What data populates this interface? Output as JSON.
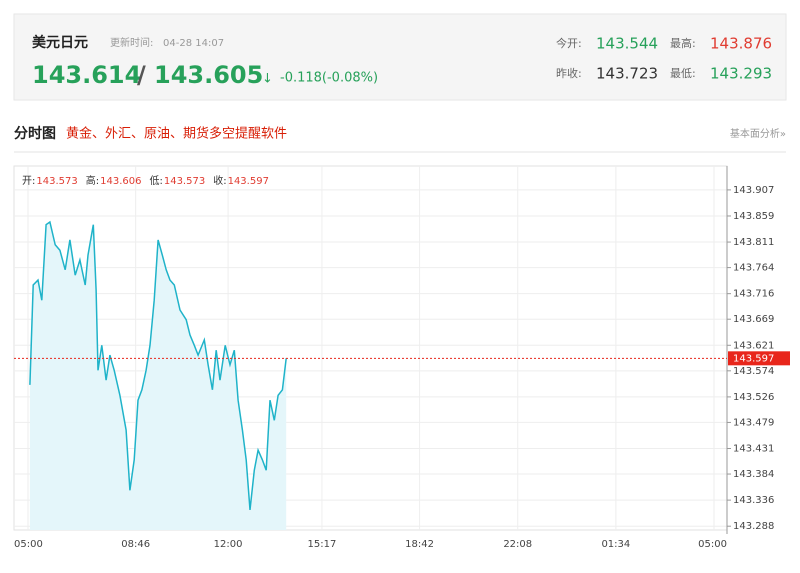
{
  "header": {
    "title": "美元日元",
    "update_label": "更新时间:",
    "update_time": "04-28 14:07",
    "bid": 143.614,
    "separator": "/",
    "ask": 143.605,
    "arrow": "↓",
    "change": "-0.118(-0.08%)",
    "stats": [
      {
        "label": "今开:",
        "value": 143.544,
        "color": "#27a15a"
      },
      {
        "label": "最高:",
        "value": 143.876,
        "color": "#e03c31"
      },
      {
        "label": "昨收:",
        "value": 143.723,
        "color": "#333333"
      },
      {
        "label": "最低:",
        "value": 143.293,
        "color": "#27a15a"
      }
    ]
  },
  "section": {
    "title": "分时图",
    "promo": "黄金、外汇、原油、期货多空提醒软件",
    "link": "基本面分析»"
  },
  "chart_data": {
    "type": "line",
    "info": [
      {
        "label": "开:",
        "value": 143.573
      },
      {
        "label": "高:",
        "value": 143.606
      },
      {
        "label": "低:",
        "value": 143.573
      },
      {
        "label": "收:",
        "value": 143.597
      }
    ],
    "x": [
      4,
      11,
      21,
      29,
      38,
      46,
      57,
      67,
      78,
      88,
      99,
      109,
      120,
      126,
      137,
      143,
      147,
      155,
      164,
      172,
      181,
      193,
      206,
      214,
      223,
      231,
      239,
      248,
      256,
      265,
      273,
      282,
      290,
      298,
      307,
      319,
      332,
      340,
      349,
      357,
      370,
      378,
      387,
      395,
      403,
      414,
      424,
      433,
      441,
      450,
      458,
      466,
      475,
      483,
      492,
      500,
      508,
      517,
      525,
      534,
      542
    ],
    "values": [
      143.548,
      143.732,
      143.741,
      143.704,
      143.843,
      143.848,
      143.806,
      143.796,
      143.76,
      143.815,
      143.75,
      143.778,
      143.732,
      143.787,
      143.843,
      143.723,
      143.575,
      143.621,
      143.557,
      143.603,
      143.575,
      143.529,
      143.465,
      143.354,
      143.41,
      143.52,
      143.539,
      143.575,
      143.621,
      143.704,
      143.815,
      143.787,
      143.76,
      143.741,
      143.732,
      143.686,
      143.668,
      143.64,
      143.621,
      143.603,
      143.631,
      143.585,
      143.539,
      143.612,
      143.557,
      143.621,
      143.585,
      143.612,
      143.52,
      143.465,
      143.41,
      143.318,
      143.391,
      143.428,
      143.41,
      143.391,
      143.52,
      143.483,
      143.529,
      143.539,
      143.597
    ],
    "color": "#1fb3c9",
    "fill_color": "#e4f6fa",
    "last_value": 143.597,
    "last_color": "#e8261b",
    "xlim": [
      0,
      1440
    ],
    "xticks": [
      {
        "value": 0,
        "label": "05:00"
      },
      {
        "value": 226,
        "label": "08:46"
      },
      {
        "value": 420,
        "label": "12:00"
      },
      {
        "value": 617,
        "label": "15:17"
      },
      {
        "value": 822,
        "label": "18:42"
      },
      {
        "value": 1028,
        "label": "22:08"
      },
      {
        "value": 1234,
        "label": "01:34"
      },
      {
        "value": 1440,
        "label": "05:00"
      }
    ],
    "ylim": [
      143.281,
      143.951
    ],
    "yticks": [
      143.907,
      143.859,
      143.811,
      143.764,
      143.716,
      143.669,
      143.621,
      143.574,
      143.526,
      143.479,
      143.431,
      143.384,
      143.336,
      143.288
    ],
    "grid": true
  }
}
